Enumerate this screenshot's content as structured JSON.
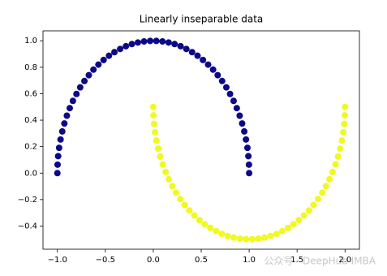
{
  "chart_data": {
    "type": "scatter",
    "title": "Linearly inseparable data",
    "series": [
      {
        "color": "#0d0887",
        "x": [
          1,
          0.998,
          0.992,
          0.982,
          0.967,
          0.949,
          0.927,
          0.901,
          0.871,
          0.838,
          0.801,
          0.762,
          0.718,
          0.672,
          0.624,
          0.572,
          0.518,
          0.462,
          0.405,
          0.345,
          0.285,
          0.223,
          0.16,
          0.096,
          0.032,
          -0.032,
          -0.096,
          -0.16,
          -0.223,
          -0.285,
          -0.345,
          -0.405,
          -0.462,
          -0.518,
          -0.572,
          -0.624,
          -0.672,
          -0.718,
          -0.762,
          -0.801,
          -0.838,
          -0.871,
          -0.901,
          -0.927,
          -0.949,
          -0.967,
          -0.982,
          -0.992,
          -0.998,
          -1
        ],
        "values": [
          0,
          0.064,
          0.128,
          0.191,
          0.254,
          0.315,
          0.375,
          0.434,
          0.491,
          0.546,
          0.598,
          0.648,
          0.696,
          0.74,
          0.782,
          0.82,
          0.855,
          0.887,
          0.914,
          0.938,
          0.959,
          0.975,
          0.987,
          0.995,
          0.999,
          0.999,
          0.995,
          0.987,
          0.975,
          0.959,
          0.938,
          0.914,
          0.887,
          0.855,
          0.82,
          0.782,
          0.74,
          0.696,
          0.648,
          0.598,
          0.546,
          0.491,
          0.434,
          0.375,
          0.315,
          0.254,
          0.191,
          0.128,
          0.064,
          0
        ]
      },
      {
        "color": "#f0f921",
        "x": [
          0,
          0.002,
          0.008,
          0.018,
          0.033,
          0.051,
          0.073,
          0.099,
          0.129,
          0.162,
          0.199,
          0.238,
          0.282,
          0.328,
          0.376,
          0.428,
          0.482,
          0.538,
          0.595,
          0.655,
          0.715,
          0.777,
          0.84,
          0.904,
          0.968,
          1.032,
          1.096,
          1.16,
          1.223,
          1.285,
          1.345,
          1.405,
          1.462,
          1.518,
          1.572,
          1.624,
          1.672,
          1.718,
          1.762,
          1.801,
          1.838,
          1.871,
          1.901,
          1.927,
          1.949,
          1.967,
          1.982,
          1.992,
          1.998,
          2
        ],
        "values": [
          0.5,
          0.436,
          0.372,
          0.309,
          0.246,
          0.185,
          0.125,
          0.066,
          0.009,
          -0.046,
          -0.098,
          -0.148,
          -0.196,
          -0.24,
          -0.282,
          -0.32,
          -0.355,
          -0.387,
          -0.414,
          -0.438,
          -0.459,
          -0.475,
          -0.487,
          -0.495,
          -0.499,
          -0.499,
          -0.495,
          -0.487,
          -0.475,
          -0.459,
          -0.438,
          -0.414,
          -0.387,
          -0.355,
          -0.32,
          -0.282,
          -0.24,
          -0.196,
          -0.148,
          -0.098,
          -0.046,
          0.009,
          0.066,
          0.125,
          0.185,
          0.246,
          0.309,
          0.372,
          0.436,
          0.5
        ]
      }
    ],
    "xlim": [
      -1.15,
      2.15
    ],
    "ylim": [
      -0.575,
      1.075
    ],
    "xticks": [
      {
        "value": -1,
        "label": "−1.0"
      },
      {
        "value": -0.5,
        "label": "−0.5"
      },
      {
        "value": 0,
        "label": "0.0"
      },
      {
        "value": 0.5,
        "label": "0.5"
      },
      {
        "value": 1,
        "label": "1.0"
      },
      {
        "value": 1.5,
        "label": "1.5"
      },
      {
        "value": 2,
        "label": "2.0"
      }
    ],
    "yticks": [
      {
        "value": -0.4,
        "label": "−0.4"
      },
      {
        "value": -0.2,
        "label": "−0.2"
      },
      {
        "value": 0,
        "label": "0.0"
      },
      {
        "value": 0.2,
        "label": "0.2"
      },
      {
        "value": 0.4,
        "label": "0.4"
      },
      {
        "value": 0.6,
        "label": "0.6"
      },
      {
        "value": 0.8,
        "label": "0.8"
      },
      {
        "value": 1,
        "label": "1.0"
      }
    ],
    "watermark": "公众号 · DeepHub IMBA"
  }
}
